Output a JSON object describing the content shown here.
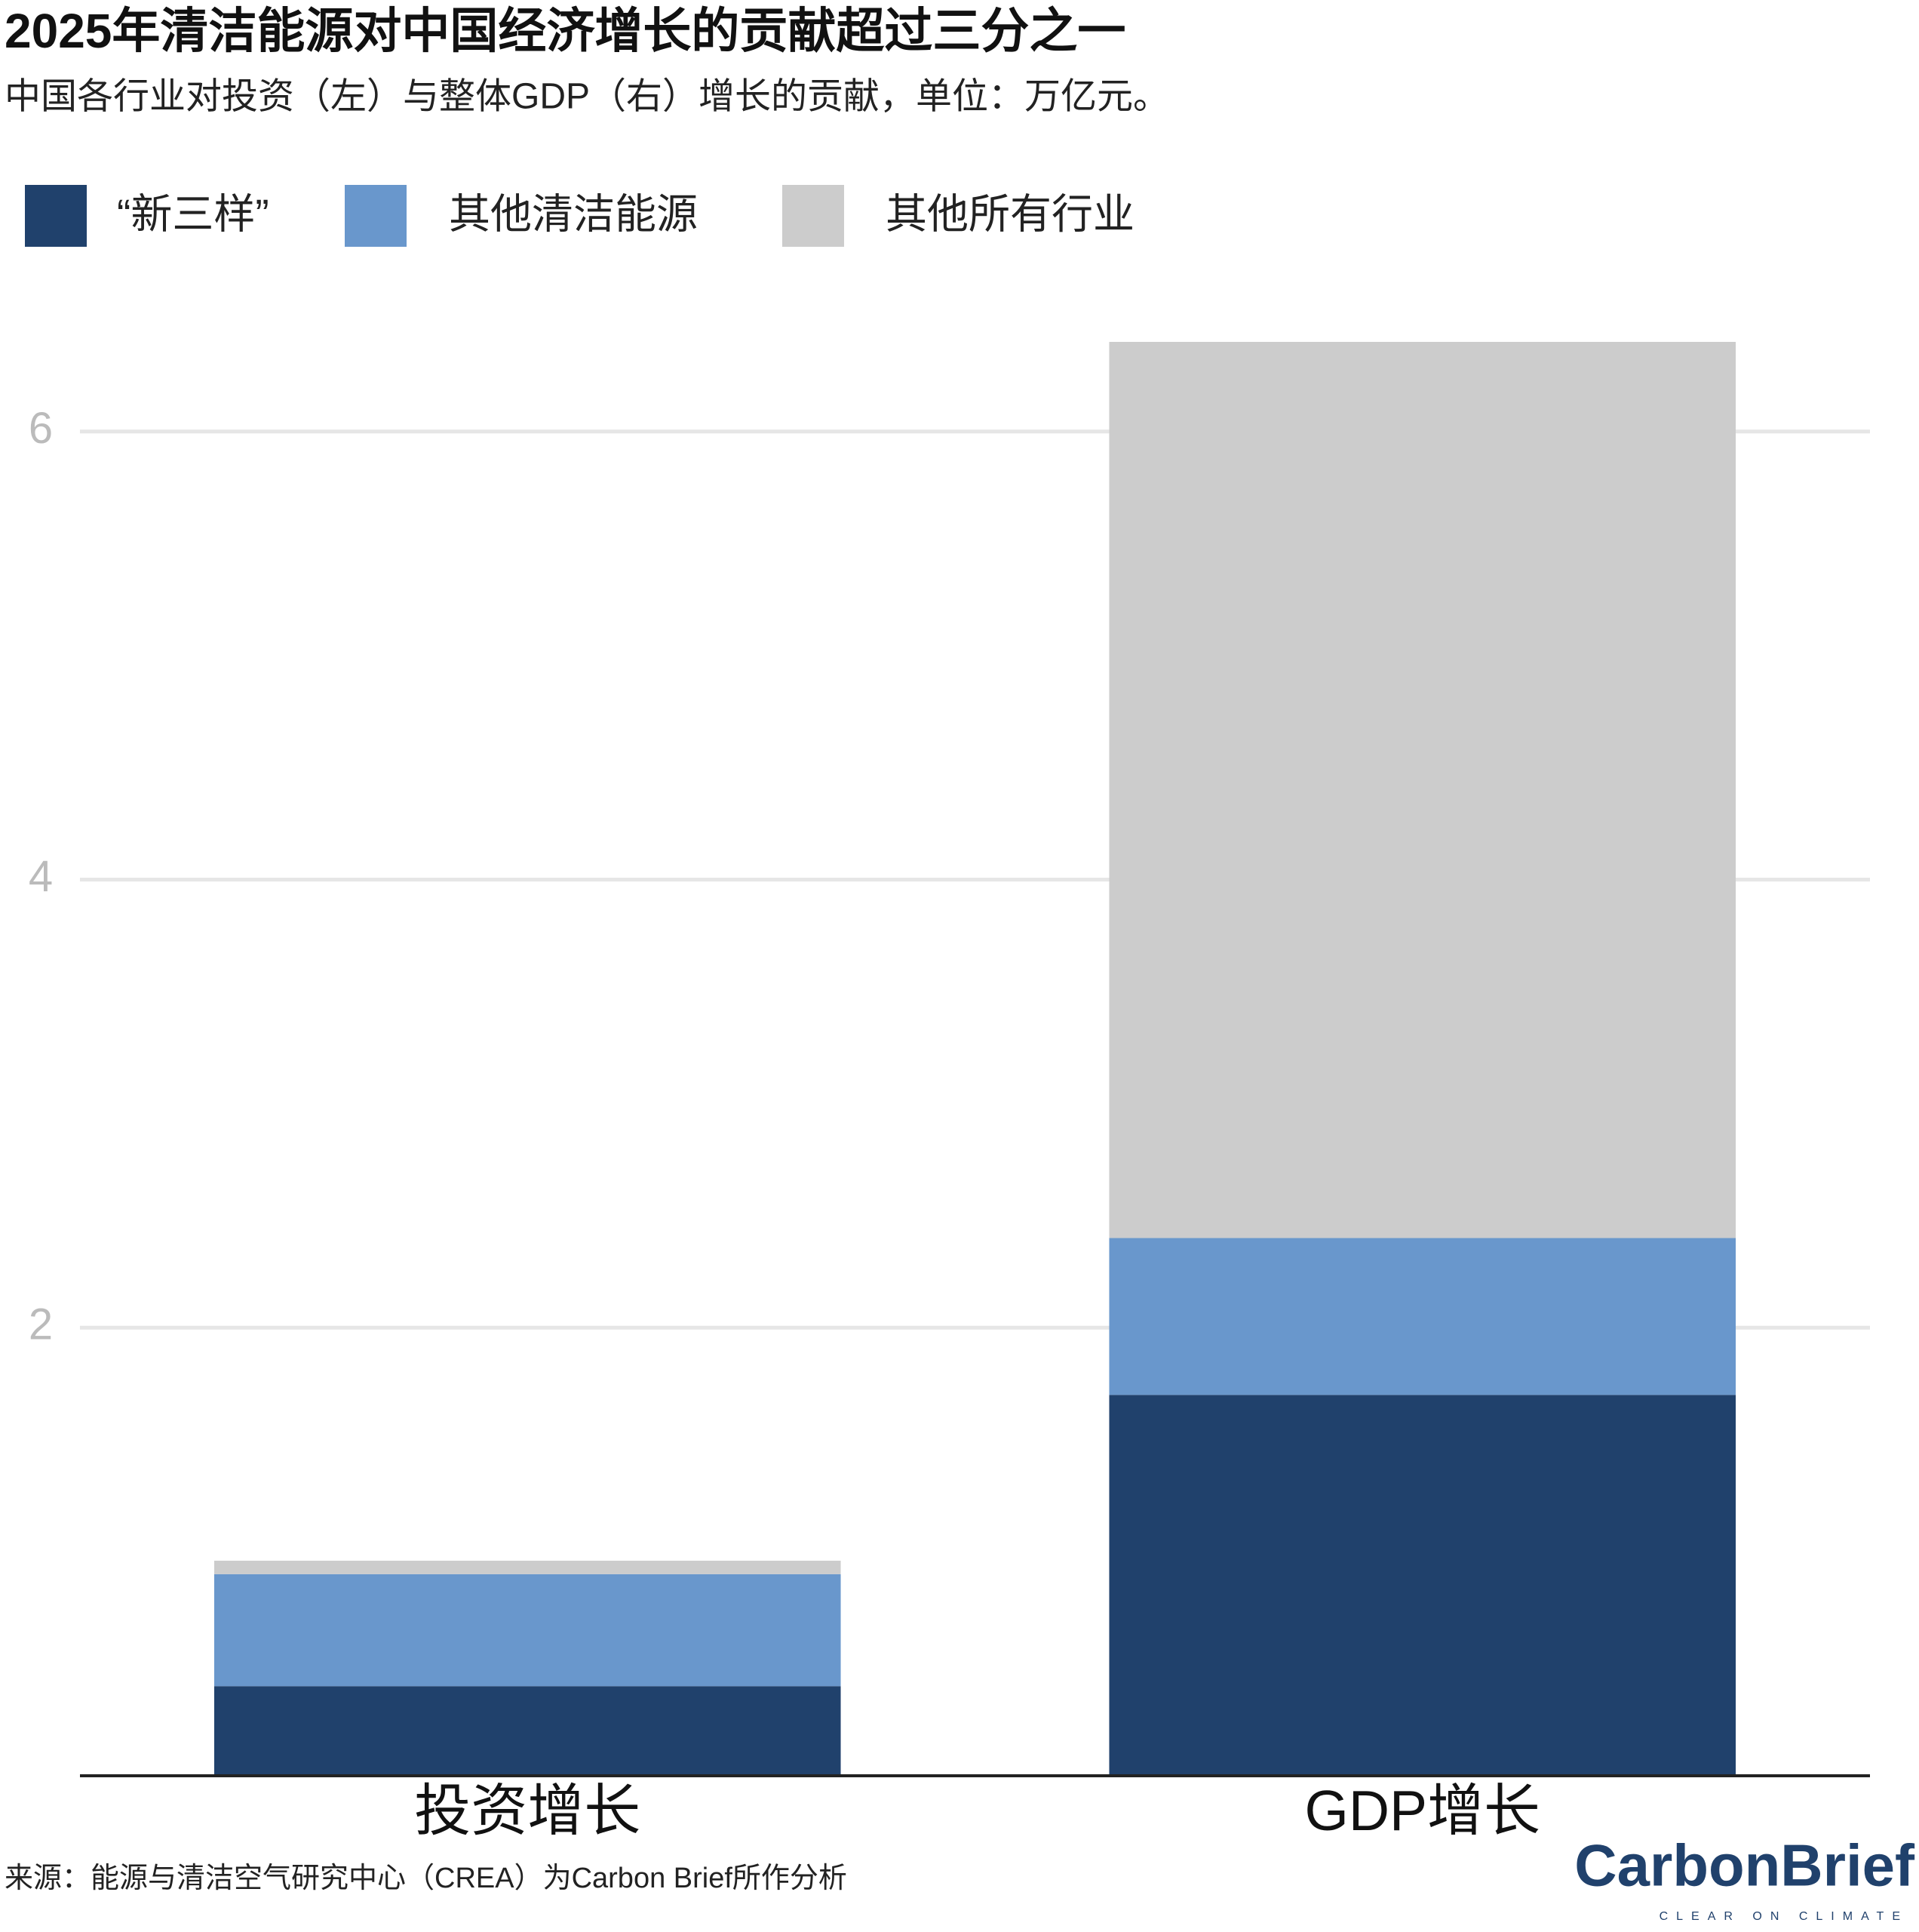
{
  "chart_data": {
    "type": "stacked_bar",
    "title": "2025年清洁能源对中国经济增长的贡献超过三分之一",
    "subtitle": "中国各行业对投资（左）与整体GDP（右）增长的贡献，单位：万亿元。",
    "categories": [
      "投资增长",
      "GDP增长"
    ],
    "series": [
      {
        "name": "“新三样”",
        "color": "#20416c",
        "values": [
          0.4,
          1.7
        ]
      },
      {
        "name": "其他清洁能源",
        "color": "#6997cc",
        "values": [
          0.5,
          0.7
        ]
      },
      {
        "name": "其他所有行业",
        "color": "#cccccc",
        "values": [
          0.06,
          4.0
        ]
      }
    ],
    "ylim": [
      0,
      6.4
    ],
    "yticks": [
      2,
      4,
      6
    ],
    "grid": true,
    "source": "来源：能源与清洁空气研究中心（CREA）为Carbon Brief所作分析"
  },
  "logo": {
    "name": "CarbonBrief",
    "tagline": "CLEAR ON CLIMATE"
  }
}
